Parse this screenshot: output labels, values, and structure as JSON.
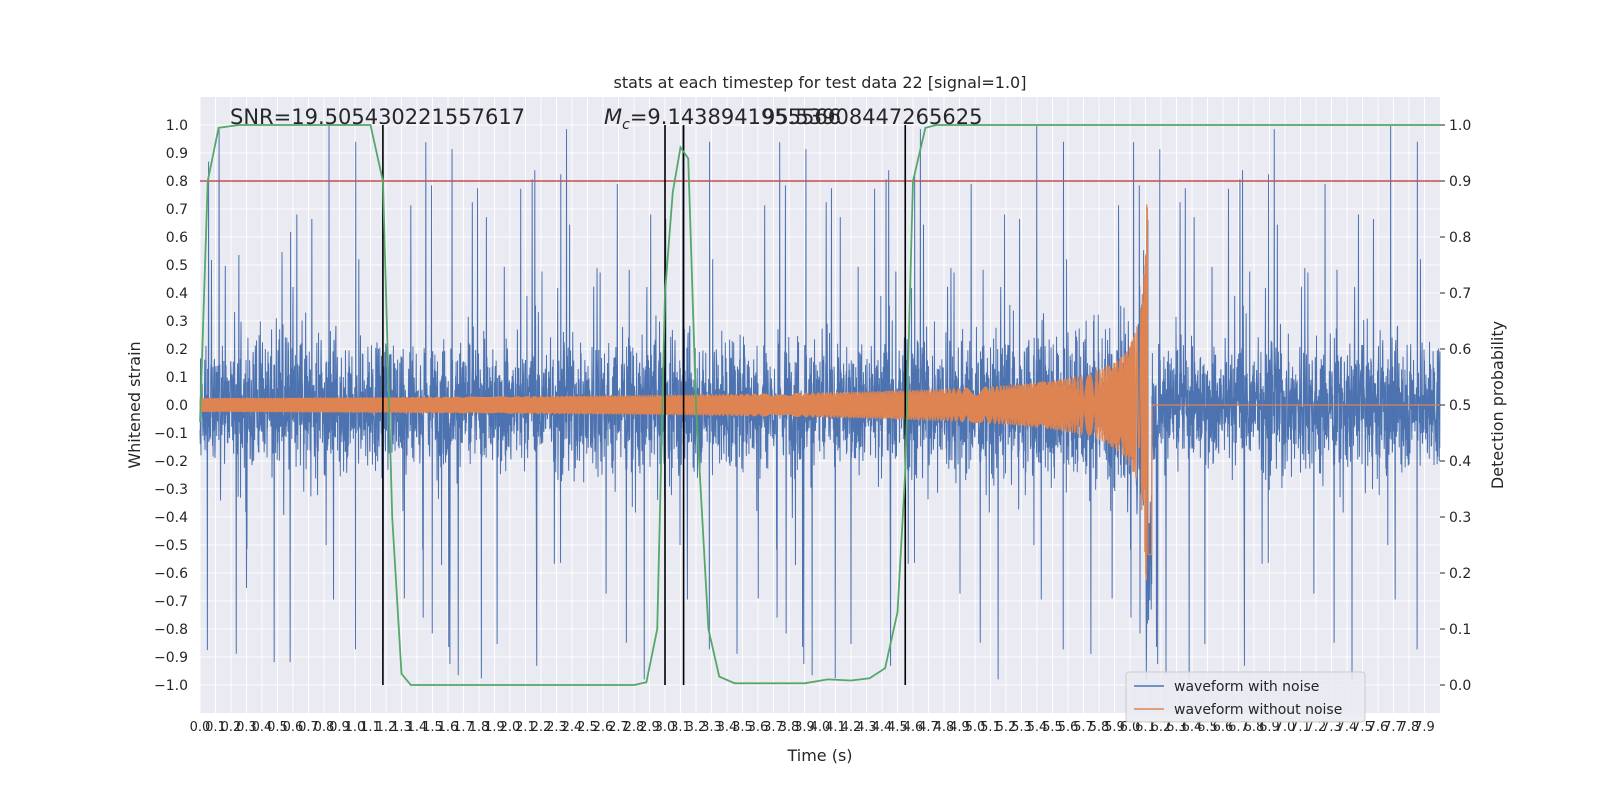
{
  "chart_data": {
    "type": "line",
    "title": "stats at each timestep for test data 22 [signal=1.0]",
    "xlabel": "Time (s)",
    "ylabel": "Whitened strain",
    "y2label": "Detection probability",
    "xlim": [
      0.0,
      8.0
    ],
    "ylim": [
      -1.1,
      1.1
    ],
    "y2lim": [
      -0.05,
      1.05
    ],
    "xticks": [
      "0.0",
      "0.1",
      "0.2",
      "0.3",
      "0.4",
      "0.5",
      "0.6",
      "0.7",
      "0.8",
      "0.9",
      "1.0",
      "1.1",
      "1.2",
      "1.3",
      "1.4",
      "1.5",
      "1.6",
      "1.7",
      "1.8",
      "1.9",
      "2.0",
      "2.1",
      "2.2",
      "2.3",
      "2.4",
      "2.5",
      "2.6",
      "2.7",
      "2.8",
      "2.9",
      "3.0",
      "3.1",
      "3.2",
      "3.3",
      "3.4",
      "3.5",
      "3.6",
      "3.7",
      "3.8",
      "3.9",
      "4.0",
      "4.1",
      "4.2",
      "4.3",
      "4.4",
      "4.5",
      "4.6",
      "4.7",
      "4.8",
      "4.9",
      "5.0",
      "5.1",
      "5.2",
      "5.3",
      "5.4",
      "5.5",
      "5.6",
      "5.7",
      "5.8",
      "5.9",
      "6.0",
      "6.1",
      "6.2",
      "6.3",
      "6.4",
      "6.5",
      "6.6",
      "6.7",
      "6.8",
      "6.9",
      "7.0",
      "7.1",
      "7.2",
      "7.3",
      "7.4",
      "7.5",
      "7.6",
      "7.7",
      "7.8",
      "7.9"
    ],
    "yticks": [
      "1.0",
      "0.9",
      "0.8",
      "0.7",
      "0.6",
      "0.5",
      "0.4",
      "0.3",
      "0.2",
      "0.1",
      "0.0",
      "−0.1",
      "−0.2",
      "−0.3",
      "−0.4",
      "−0.5",
      "−0.6",
      "−0.7",
      "−0.8",
      "−0.9",
      "−1.0"
    ],
    "y2ticks": [
      "1.0",
      "0.9",
      "0.8",
      "0.7",
      "0.6",
      "0.5",
      "0.4",
      "0.3",
      "0.2",
      "0.1",
      "0.0"
    ],
    "annotations": {
      "snr": "SNR=19.505430221557617",
      "mc_prefix": "M",
      "mc_sub": "c",
      "mc_value": "=9.1438941955566",
      "overlap": "95.53908447265625"
    },
    "threshold": {
      "y2": 0.9,
      "color": "#c44e52"
    },
    "vlines_s": [
      1.18,
      3.0,
      3.12,
      4.55
    ],
    "series": [
      {
        "name": "waveform with noise",
        "color": "#4c72b0",
        "noise_amplitude": 0.35,
        "spike_range": [
          -0.98,
          1.0
        ]
      },
      {
        "name": "waveform without noise",
        "color": "#dd8452",
        "start_amp": 0.025,
        "merger_s": 6.12,
        "merger_amp": 0.72
      },
      {
        "color": "#55a868",
        "probability": [
          [
            0.0,
            0.47
          ],
          [
            0.05,
            0.9
          ],
          [
            0.12,
            0.995
          ],
          [
            0.25,
            1.0
          ],
          [
            1.1,
            1.0
          ],
          [
            1.18,
            0.9
          ],
          [
            1.24,
            0.3
          ],
          [
            1.3,
            0.02
          ],
          [
            1.36,
            0.0
          ],
          [
            2.8,
            0.0
          ],
          [
            2.88,
            0.005
          ],
          [
            2.95,
            0.1
          ],
          [
            3.0,
            0.7
          ],
          [
            3.05,
            0.88
          ],
          [
            3.1,
            0.96
          ],
          [
            3.15,
            0.94
          ],
          [
            3.2,
            0.5
          ],
          [
            3.28,
            0.1
          ],
          [
            3.35,
            0.015
          ],
          [
            3.45,
            0.003
          ],
          [
            3.9,
            0.003
          ],
          [
            4.05,
            0.01
          ],
          [
            4.2,
            0.008
          ],
          [
            4.32,
            0.012
          ],
          [
            4.42,
            0.03
          ],
          [
            4.5,
            0.13
          ],
          [
            4.55,
            0.38
          ],
          [
            4.6,
            0.9
          ],
          [
            4.68,
            0.995
          ],
          [
            4.75,
            1.0
          ],
          [
            8.0,
            1.0
          ]
        ]
      }
    ],
    "legend": {
      "placement": "lower-right"
    },
    "grid": true
  }
}
